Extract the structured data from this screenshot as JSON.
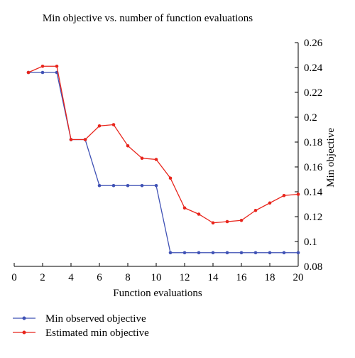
{
  "chart_data": {
    "type": "line",
    "title": "Min objective vs. number of function evaluations",
    "xlabel": "Function evaluations",
    "ylabel": "Min objective",
    "xlim": [
      0,
      20
    ],
    "ylim": [
      0.08,
      0.26
    ],
    "x_ticks": [
      "0",
      "2",
      "4",
      "6",
      "8",
      "10",
      "12",
      "14",
      "16",
      "18",
      "20"
    ],
    "y_ticks": [
      "0.08",
      "0.1",
      "0.12",
      "0.14",
      "0.16",
      "0.18",
      "0.2",
      "0.22",
      "0.24",
      "0.26"
    ],
    "grid": false,
    "y_axis_side": "right",
    "legend_position": "bottom-left",
    "x": [
      1,
      2,
      3,
      4,
      5,
      6,
      7,
      8,
      9,
      10,
      11,
      12,
      13,
      14,
      15,
      16,
      17,
      18,
      19,
      20
    ],
    "series": [
      {
        "name": "Min observed objective",
        "color": "#3f51b5",
        "values": [
          0.236,
          0.236,
          0.236,
          0.182,
          0.182,
          0.145,
          0.145,
          0.145,
          0.145,
          0.145,
          0.091,
          0.091,
          0.091,
          0.091,
          0.091,
          0.091,
          0.091,
          0.091,
          0.091,
          0.091
        ]
      },
      {
        "name": "Estimated min objective",
        "color": "#e8251c",
        "values": [
          0.236,
          0.241,
          0.241,
          0.182,
          0.182,
          0.193,
          0.194,
          0.177,
          0.167,
          0.166,
          0.151,
          0.127,
          0.122,
          0.115,
          0.116,
          0.117,
          0.125,
          0.131,
          0.137,
          0.138
        ]
      }
    ]
  }
}
